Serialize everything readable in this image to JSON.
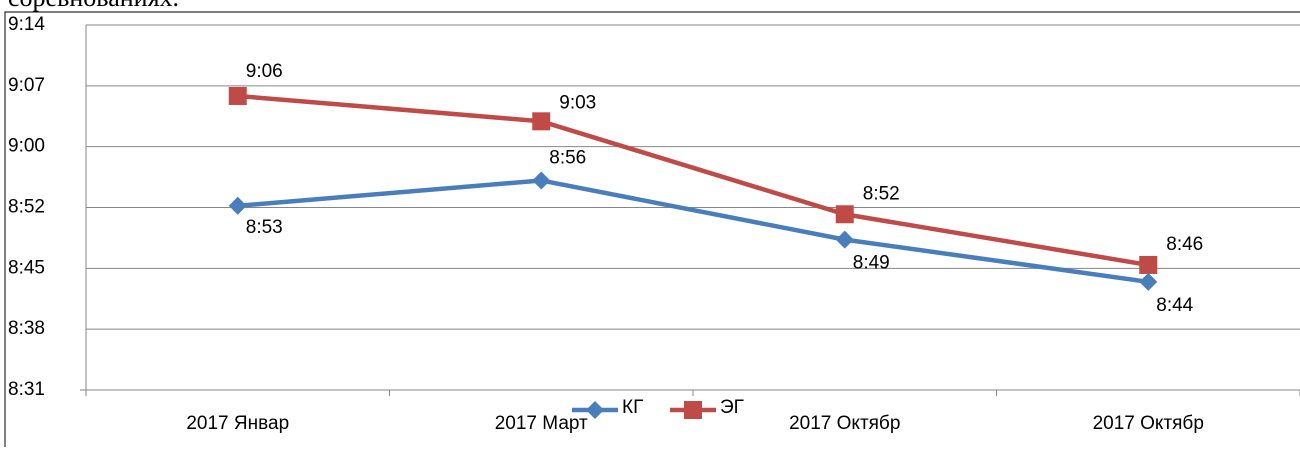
{
  "caption": "соревнованиях.",
  "chart_data": {
    "type": "line",
    "categories": [
      "2017 Январ",
      "2017 Март",
      "2017 Октябр",
      "2017 Октябр"
    ],
    "series": [
      {
        "name": "КГ",
        "color": "#4a7ebb",
        "marker": "diamond",
        "values": [
          533,
          536,
          529,
          524
        ],
        "value_labels": [
          "8:53",
          "8:56",
          "8:49",
          "8:44"
        ]
      },
      {
        "name": "ЭГ",
        "color": "#be4b48",
        "marker": "square",
        "values": [
          546,
          543,
          532,
          526
        ],
        "value_labels": [
          "9:06",
          "9:03",
          "8:52",
          "8:46"
        ]
      }
    ],
    "ylim": [
      511.2,
      554.4
    ],
    "yticks": [
      {
        "value": 511.2,
        "label": "8:31"
      },
      {
        "value": 518.4,
        "label": "8:38"
      },
      {
        "value": 525.6,
        "label": "8:45"
      },
      {
        "value": 532.8,
        "label": "8:52"
      },
      {
        "value": 540,
        "label": "9:00"
      },
      {
        "value": 547.2,
        "label": "9:07"
      },
      {
        "value": 554.4,
        "label": "9:14"
      }
    ],
    "grid": true,
    "legend": "bottom"
  }
}
